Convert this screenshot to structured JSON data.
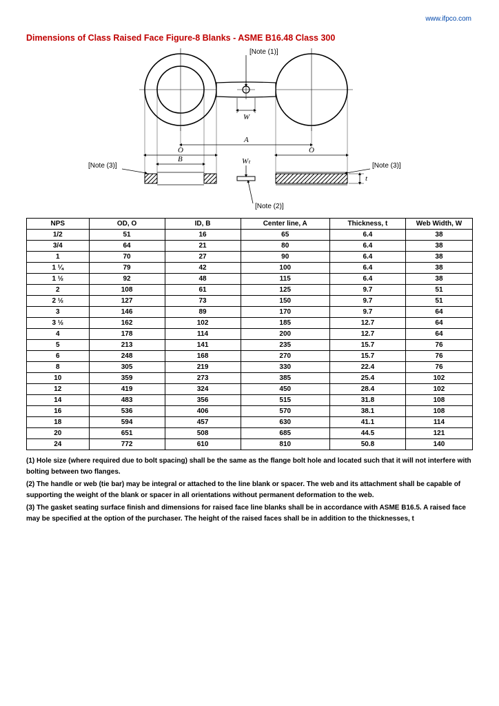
{
  "url_text": "www.ifpco.com",
  "title": "Dimensions of Class Raised Face Figure-8 Blanks - ASME B16.48 Class 300",
  "diagram": {
    "labels": {
      "note1": "[Note (1)]",
      "note2": "[Note (2)]",
      "note3_l": "[Note (3)]",
      "note3_r": "[Note (3)]",
      "W": "W",
      "Wt": "Wₜ",
      "A": "A",
      "O_l": "O",
      "O_r": "O",
      "B": "B",
      "t": "t"
    },
    "colors": {
      "stroke": "#000000",
      "hatch": "#000000",
      "bg": "#ffffff"
    },
    "stroke_width": 1.2
  },
  "table": {
    "columns": [
      "NPS",
      "OD, O",
      "ID, B",
      "Center line, A",
      "Thickness, t",
      "Web Width, W"
    ],
    "col_widths": [
      "14%",
      "17%",
      "17%",
      "20%",
      "17%",
      "15%"
    ],
    "rows": [
      [
        "1/2",
        "51",
        "16",
        "65",
        "6.4",
        "38"
      ],
      [
        "3/4",
        "64",
        "21",
        "80",
        "6.4",
        "38"
      ],
      [
        "1",
        "70",
        "27",
        "90",
        "6.4",
        "38"
      ],
      [
        "1 ¼",
        "79",
        "42",
        "100",
        "6.4",
        "38"
      ],
      [
        "1 ½",
        "92",
        "48",
        "115",
        "6.4",
        "38"
      ],
      [
        "2",
        "108",
        "61",
        "125",
        "9.7",
        "51"
      ],
      [
        "2 ½",
        "127",
        "73",
        "150",
        "9.7",
        "51"
      ],
      [
        "3",
        "146",
        "89",
        "170",
        "9.7",
        "64"
      ],
      [
        "3 ½",
        "162",
        "102",
        "185",
        "12.7",
        "64"
      ],
      [
        "4",
        "178",
        "114",
        "200",
        "12.7",
        "64"
      ],
      [
        "5",
        "213",
        "141",
        "235",
        "15.7",
        "76"
      ],
      [
        "6",
        "248",
        "168",
        "270",
        "15.7",
        "76"
      ],
      [
        "8",
        "305",
        "219",
        "330",
        "22.4",
        "76"
      ],
      [
        "10",
        "359",
        "273",
        "385",
        "25.4",
        "102"
      ],
      [
        "12",
        "419",
        "324",
        "450",
        "28.4",
        "102"
      ],
      [
        "14",
        "483",
        "356",
        "515",
        "31.8",
        "108"
      ],
      [
        "16",
        "536",
        "406",
        "570",
        "38.1",
        "108"
      ],
      [
        "18",
        "594",
        "457",
        "630",
        "41.1",
        "114"
      ],
      [
        "20",
        "651",
        "508",
        "685",
        "44.5",
        "121"
      ],
      [
        "24",
        "772",
        "610",
        "810",
        "50.8",
        "140"
      ]
    ]
  },
  "notes": [
    "(1)  Hole size (where required due to bolt spacing) shall be the same as the flange bolt hole and located such that it will not interfere with bolting between two flanges.",
    "(2)  The handle or web (tie bar) may be integral or attached to the line blank or spacer. The web and its attachment shall be capable of supporting the weight of the blank or spacer in all orientations without permanent deformation to the web.",
    "(3)  The gasket seating surface finish and dimensions for raised face line blanks shall be in accordance with ASME B16.5. A raised face may be specified at the option of the purchaser. The height of the raised faces shall be in addition to the thicknesses, t"
  ]
}
